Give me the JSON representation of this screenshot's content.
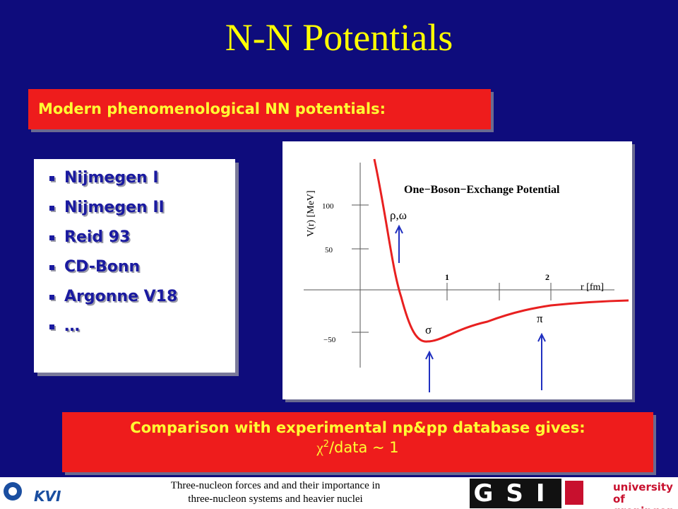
{
  "title": "N-N Potentials",
  "subtitle_box": "Modern phenomenological NN potentials:",
  "list": [
    "Nijmegen I",
    "Nijmegen II",
    "Reid 93",
    "CD-Bonn",
    "Argonne V18",
    "…"
  ],
  "figure": {
    "title": "One−Boson−Exchange Potential",
    "y_label": "V(r) [MeV]",
    "x_label": "r [fm]",
    "y_ticks": [
      "100",
      "50",
      "−50"
    ],
    "x_ticks": [
      "1",
      "2"
    ],
    "labels": [
      "ρ,ω",
      "σ",
      "π"
    ]
  },
  "conclusion": {
    "text": "Comparison with experimental np&pp database gives:",
    "chi": "χ",
    "superscript": "2",
    "rest": "/data ~ 1"
  },
  "footer": {
    "left_logo": "KVI",
    "text": [
      "Three-nucleon forces and and their importance in",
      "three-nucleon systems and heavier nuclei"
    ],
    "right_logo": "GSI",
    "university": [
      "university of",
      "groningen"
    ]
  }
}
